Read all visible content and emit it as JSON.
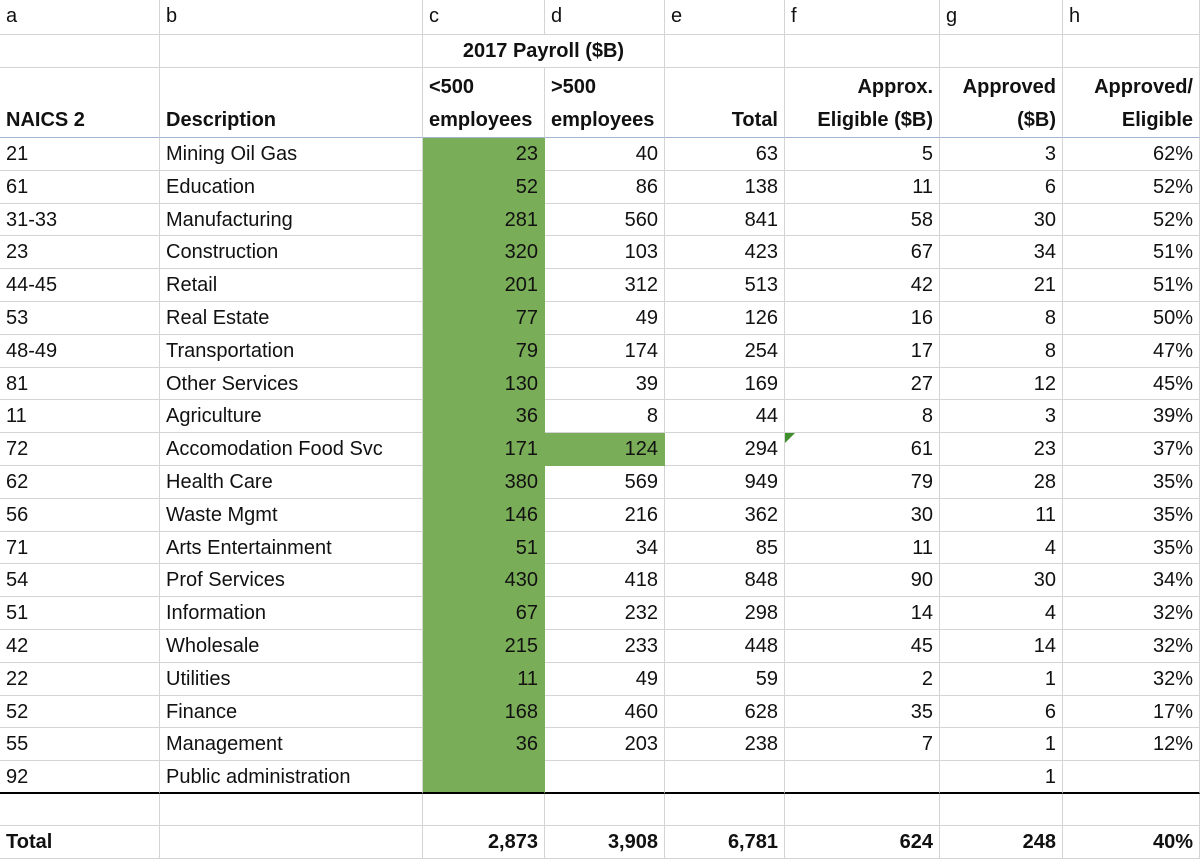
{
  "sheet": {
    "column_letters": [
      "a",
      "b",
      "c",
      "d",
      "e",
      "f",
      "g",
      "h"
    ],
    "group_header": "2017 Payroll ($B)",
    "headers": [
      [
        "NAICS 2"
      ],
      [
        "Description"
      ],
      [
        "<500",
        "employees"
      ],
      [
        ">500",
        "employees"
      ],
      [
        "Total"
      ],
      [
        "Approx.",
        "Eligible ($B)"
      ],
      [
        "Approved",
        "($B)"
      ],
      [
        "Approved/",
        "Eligible"
      ]
    ],
    "rows": [
      [
        "21",
        "Mining Oil Gas",
        "23",
        "40",
        "63",
        "5",
        "3",
        "62%"
      ],
      [
        "61",
        "Education",
        "52",
        "86",
        "138",
        "11",
        "6",
        "52%"
      ],
      [
        "31-33",
        "Manufacturing",
        "281",
        "560",
        "841",
        "58",
        "30",
        "52%"
      ],
      [
        "23",
        "Construction",
        "320",
        "103",
        "423",
        "67",
        "34",
        "51%"
      ],
      [
        "44-45",
        "Retail",
        "201",
        "312",
        "513",
        "42",
        "21",
        "51%"
      ],
      [
        "53",
        "Real Estate",
        "77",
        "49",
        "126",
        "16",
        "8",
        "50%"
      ],
      [
        "48-49",
        "Transportation",
        "79",
        "174",
        "254",
        "17",
        "8",
        "47%"
      ],
      [
        "81",
        "Other Services",
        "130",
        "39",
        "169",
        "27",
        "12",
        "45%"
      ],
      [
        "11",
        "Agriculture",
        "36",
        "8",
        "44",
        "8",
        "3",
        "39%"
      ],
      [
        "72",
        "Accomodation Food Svc",
        "171",
        "124",
        "294",
        "61",
        "23",
        "37%"
      ],
      [
        "62",
        "Health Care",
        "380",
        "569",
        "949",
        "79",
        "28",
        "35%"
      ],
      [
        "56",
        "Waste Mgmt",
        "146",
        "216",
        "362",
        "30",
        "11",
        "35%"
      ],
      [
        "71",
        "Arts Entertainment",
        "51",
        "34",
        "85",
        "11",
        "4",
        "35%"
      ],
      [
        "54",
        "Prof Services",
        "430",
        "418",
        "848",
        "90",
        "30",
        "34%"
      ],
      [
        "51",
        "Information",
        "67",
        "232",
        "298",
        "14",
        "4",
        "32%"
      ],
      [
        "42",
        "Wholesale",
        "215",
        "233",
        "448",
        "45",
        "14",
        "32%"
      ],
      [
        "22",
        "Utilities",
        "11",
        "49",
        "59",
        "2",
        "1",
        "32%"
      ],
      [
        "52",
        "Finance",
        "168",
        "460",
        "628",
        "35",
        "6",
        "17%"
      ],
      [
        "55",
        "Management",
        "36",
        "203",
        "238",
        "7",
        "1",
        "12%"
      ],
      [
        "92",
        "Public administration",
        null,
        null,
        null,
        null,
        "1",
        null
      ]
    ],
    "total_row": [
      "Total",
      null,
      "2,873",
      "3,908",
      "6,781",
      "624",
      "248",
      "40%"
    ]
  }
}
